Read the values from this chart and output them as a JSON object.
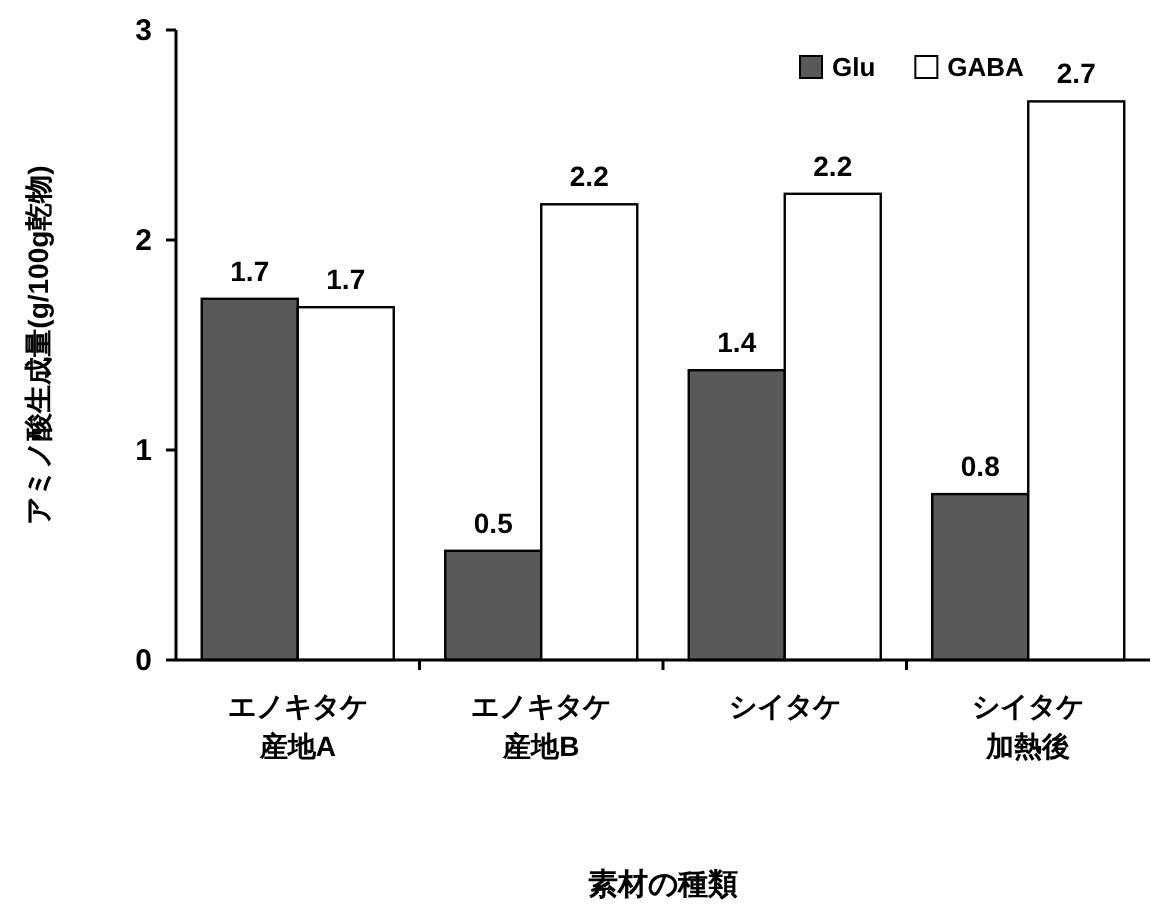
{
  "chart_data": {
    "type": "bar",
    "xlabel": "素材の種類",
    "ylabel": "アミノ酸生成量(g/100g乾物)",
    "categories": [
      "エノキタケ産地A",
      "エノキタケ産地B",
      "シイタケ",
      "シイタケ加熱後"
    ],
    "series": [
      {
        "name": "Glu",
        "color": "#595959",
        "values": [
          1.72,
          0.52,
          1.38,
          0.79
        ],
        "value_labels": [
          "1.7",
          "0.5",
          "1.4",
          "0.8"
        ]
      },
      {
        "name": "GABA",
        "color": "#ffffff",
        "values": [
          1.68,
          2.17,
          2.22,
          2.66
        ],
        "value_labels": [
          "1.7",
          "2.2",
          "2.2",
          "2.7"
        ]
      }
    ],
    "ylim": [
      0,
      3
    ],
    "yticks": [
      0,
      1,
      2,
      3
    ],
    "legend": "top right"
  }
}
